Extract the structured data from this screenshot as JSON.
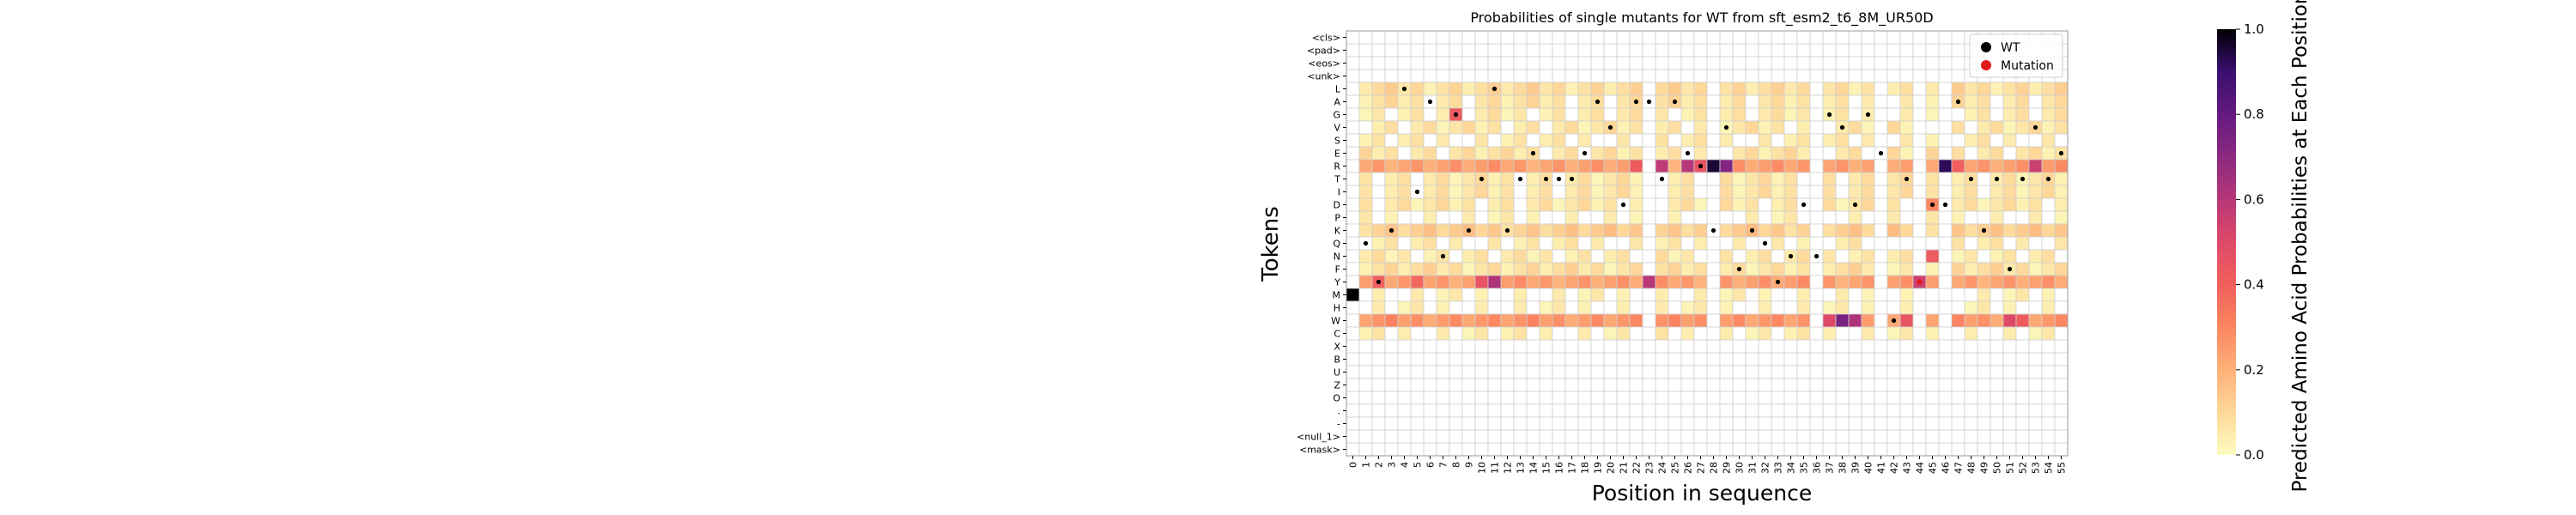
{
  "chart_data": {
    "type": "heatmap",
    "title": "Probabilities of single mutants for WT from sft_esm2_t6_8M_UR50D",
    "xlabel": "Position in sequence",
    "ylabel": "Tokens",
    "colorbar_label": "Predicted Amino Acid Probabilities at Each Position",
    "colorbar_ticks": [
      "0.0",
      "0.2",
      "0.4",
      "0.6",
      "0.8",
      "1.0"
    ],
    "colormap": "magma_r",
    "vmin": 0.0,
    "vmax": 1.0,
    "positions": [
      "0",
      "1",
      "2",
      "3",
      "4",
      "5",
      "6",
      "7",
      "8",
      "9",
      "10",
      "11",
      "12",
      "13",
      "14",
      "15",
      "16",
      "17",
      "18",
      "19",
      "20",
      "21",
      "22",
      "23",
      "24",
      "25",
      "26",
      "27",
      "28",
      "29",
      "30",
      "31",
      "32",
      "33",
      "34",
      "35",
      "36",
      "37",
      "38",
      "39",
      "40",
      "41",
      "42",
      "43",
      "44",
      "45",
      "46",
      "47",
      "48",
      "49",
      "50",
      "51",
      "52",
      "53",
      "54",
      "55"
    ],
    "tokens": [
      "<cls>",
      "<pad>",
      "<eos>",
      "<unk>",
      "L",
      "A",
      "G",
      "V",
      "S",
      "E",
      "R",
      "T",
      "I",
      "D",
      "P",
      "K",
      "Q",
      "N",
      "F",
      "Y",
      "M",
      "H",
      "W",
      "C",
      "X",
      "B",
      "U",
      "Z",
      "O",
      ".",
      "-",
      "<null_1>",
      "<mask>"
    ],
    "legend": {
      "placement": "upper-right",
      "entries": [
        {
          "label": "WT",
          "color": "#000000"
        },
        {
          "label": "Mutation",
          "color": "#e31a1c"
        }
      ]
    },
    "wt_tokens": [
      "M",
      "Q",
      "Y",
      "K",
      "L",
      "I",
      "A",
      "N",
      "G",
      "K",
      "T",
      "L",
      "K",
      "T",
      "E",
      "T",
      "T",
      "T",
      "E",
      "A",
      "V",
      "D",
      "A",
      "A",
      "T",
      "A",
      "E",
      "R",
      "K",
      "V",
      "F",
      "K",
      "Q",
      "Y",
      "N",
      "D",
      "N",
      "G",
      "V",
      "D",
      "G",
      "E",
      "W",
      "T",
      "Y",
      "D",
      "D",
      "A",
      "T",
      "K",
      "T",
      "F",
      "T",
      "V",
      "T",
      "E"
    ],
    "mutation": {
      "position": "44",
      "token": "Y"
    },
    "low_probability_positions": [
      "0",
      "23",
      "28",
      "36",
      "41",
      "44",
      "46"
    ],
    "row_profiles": {
      "L": 0.08,
      "A": 0.06,
      "G": 0.04,
      "V": 0.05,
      "S": 0.03,
      "E": 0.06,
      "R": 0.24,
      "T": 0.05,
      "I": 0.05,
      "D": 0.05,
      "P": 0.01,
      "K": 0.12,
      "Q": 0.03,
      "N": 0.04,
      "F": 0.07,
      "Y": 0.24,
      "M": 0.01,
      "H": 0.01,
      "W": 0.26,
      "C": 0.02
    },
    "highlights": [
      {
        "token": "M",
        "position": "0",
        "value": 1.0
      },
      {
        "token": "R",
        "position": "28",
        "value": 0.95
      },
      {
        "token": "R",
        "position": "46",
        "value": 0.92
      },
      {
        "token": "R",
        "position": "29",
        "value": 0.72
      },
      {
        "token": "R",
        "position": "24",
        "value": 0.58
      },
      {
        "token": "R",
        "position": "26",
        "value": 0.6
      },
      {
        "token": "R",
        "position": "53",
        "value": 0.55
      },
      {
        "token": "R",
        "position": "27",
        "value": 0.45
      },
      {
        "token": "R",
        "position": "22",
        "value": 0.42
      },
      {
        "token": "R",
        "position": "47",
        "value": 0.4
      },
      {
        "token": "W",
        "position": "38",
        "value": 0.75
      },
      {
        "token": "W",
        "position": "39",
        "value": 0.62
      },
      {
        "token": "W",
        "position": "37",
        "value": 0.5
      },
      {
        "token": "W",
        "position": "51",
        "value": 0.5
      },
      {
        "token": "W",
        "position": "43",
        "value": 0.45
      },
      {
        "token": "W",
        "position": "52",
        "value": 0.42
      },
      {
        "token": "Y",
        "position": "11",
        "value": 0.62
      },
      {
        "token": "Y",
        "position": "23",
        "value": 0.6
      },
      {
        "token": "Y",
        "position": "44",
        "value": 0.55
      },
      {
        "token": "Y",
        "position": "10",
        "value": 0.45
      },
      {
        "token": "Y",
        "position": "2",
        "value": 0.4
      },
      {
        "token": "Y",
        "position": "5",
        "value": 0.38
      },
      {
        "token": "G",
        "position": "8",
        "value": 0.42
      },
      {
        "token": "N",
        "position": "45",
        "value": 0.42
      },
      {
        "token": "D",
        "position": "45",
        "value": 0.3
      }
    ]
  }
}
